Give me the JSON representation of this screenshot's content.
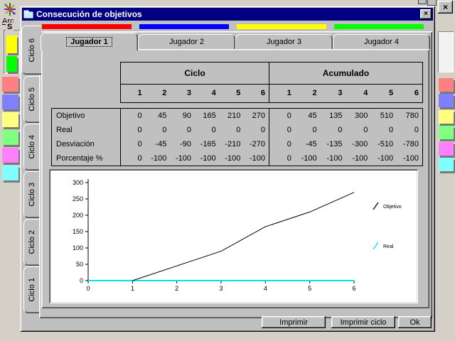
{
  "background": {
    "menu_item": {
      "initial": "A",
      "rest": "rc"
    },
    "group_label": "S",
    "close_glyph": "×",
    "group_swatches": [
      "#ffff00",
      "#00ff00"
    ],
    "left_swatches": [
      "#ff8080",
      "#8080ff",
      "#ffff80",
      "#80ff80",
      "#ff80ff",
      "#80ffff"
    ],
    "right_swatches": [
      "#ff8080",
      "#8080ff",
      "#ffff80",
      "#80ff80",
      "#ff80ff",
      "#80ffff"
    ]
  },
  "dialog": {
    "title": "Consecución de objetivos",
    "close_glyph": "×",
    "titlebar_color": "#000080",
    "player_tabs": [
      {
        "label": "Jugador 1",
        "bar_color": "#ff0000",
        "selected": true
      },
      {
        "label": "Jugador 2",
        "bar_color": "#0000ff",
        "selected": false
      },
      {
        "label": "Jugador 3",
        "bar_color": "#ffff00",
        "selected": false
      },
      {
        "label": "Jugador 4",
        "bar_color": "#00ff00",
        "selected": false
      }
    ],
    "cycle_tabs": [
      {
        "label": "Ciclo 6",
        "selected": true
      },
      {
        "label": "Ciclo 5",
        "selected": false
      },
      {
        "label": "Ciclo 4",
        "selected": false
      },
      {
        "label": "Ciclo 3",
        "selected": false
      },
      {
        "label": "Ciclo 2",
        "selected": false
      },
      {
        "label": "Ciclo 1",
        "selected": false
      }
    ],
    "table": {
      "groups": [
        "Ciclo",
        "Acumulado"
      ],
      "columns": [
        "1",
        "2",
        "3",
        "4",
        "5",
        "6"
      ],
      "rows": [
        {
          "label": "Objetivo",
          "ciclo": [
            "0",
            "45",
            "90",
            "165",
            "210",
            "270"
          ],
          "acumulado": [
            "0",
            "45",
            "135",
            "300",
            "510",
            "780"
          ]
        },
        {
          "label": "Real",
          "ciclo": [
            "0",
            "0",
            "0",
            "0",
            "0",
            "0"
          ],
          "acumulado": [
            "0",
            "0",
            "0",
            "0",
            "0",
            "0"
          ]
        },
        {
          "label": "Desviación",
          "ciclo": [
            "0",
            "-45",
            "-90",
            "-165",
            "-210",
            "-270"
          ],
          "acumulado": [
            "0",
            "-45",
            "-135",
            "-300",
            "-510",
            "-780"
          ]
        },
        {
          "label": "Porcentaje %",
          "ciclo": [
            "0",
            "-100",
            "-100",
            "-100",
            "-100",
            "-100"
          ],
          "acumulado": [
            "0",
            "-100",
            "-100",
            "-100",
            "-100",
            "-100"
          ]
        }
      ]
    },
    "buttons": [
      "Imprimir",
      "Imprimir ciclo",
      "Ok"
    ]
  },
  "chart_data": {
    "type": "line",
    "xlim": [
      0,
      6
    ],
    "ylim": [
      0,
      300
    ],
    "xticks": [
      0,
      1,
      2,
      3,
      4,
      5,
      6
    ],
    "yticks": [
      0,
      50,
      100,
      150,
      200,
      250,
      300
    ],
    "grid": false,
    "legend_position": "right",
    "series": [
      {
        "name": "Real",
        "color": "#00e0f0",
        "x": [
          0,
          1,
          2,
          3,
          4,
          5,
          6
        ],
        "y": [
          0,
          0,
          0,
          0,
          0,
          0,
          0
        ]
      },
      {
        "name": "Objetivo",
        "color": "#000000",
        "x": [
          1,
          2,
          3,
          4,
          5,
          6
        ],
        "y": [
          0,
          45,
          90,
          165,
          210,
          270
        ]
      }
    ]
  }
}
